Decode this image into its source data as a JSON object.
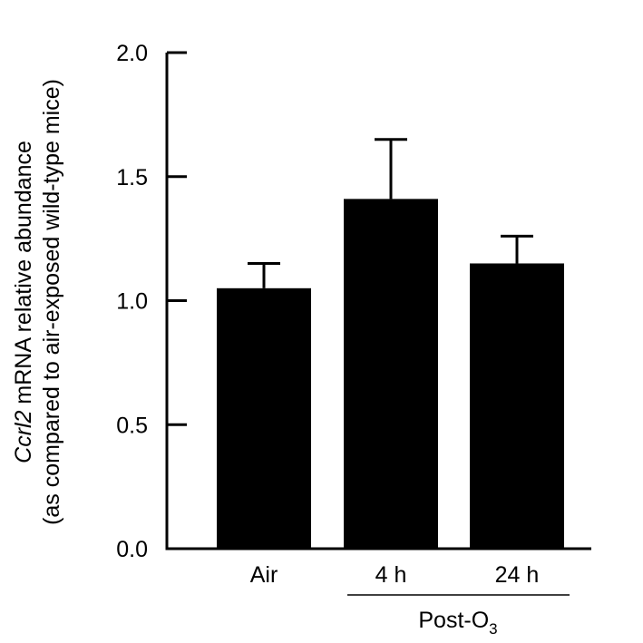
{
  "chart_data": {
    "type": "bar",
    "categories": [
      "Air",
      "4 h",
      "24 h"
    ],
    "values": [
      1.05,
      1.41,
      1.15
    ],
    "error_upper": [
      1.15,
      1.65,
      1.26
    ],
    "ylim": [
      0,
      2.0
    ],
    "yticks": [
      "0.0",
      "0.5",
      "1.0",
      "1.5",
      "2.0"
    ],
    "ylabel_italic": "Ccrl2",
    "ylabel_rest": " mRNA relative abundance",
    "ylabel_line2": "(as compared to air-exposed wild-type mice)",
    "group_label_main": "Post-O",
    "group_label_sub": "3",
    "grid": false,
    "colors": {
      "bar": "#000000",
      "axis": "#000000"
    }
  }
}
